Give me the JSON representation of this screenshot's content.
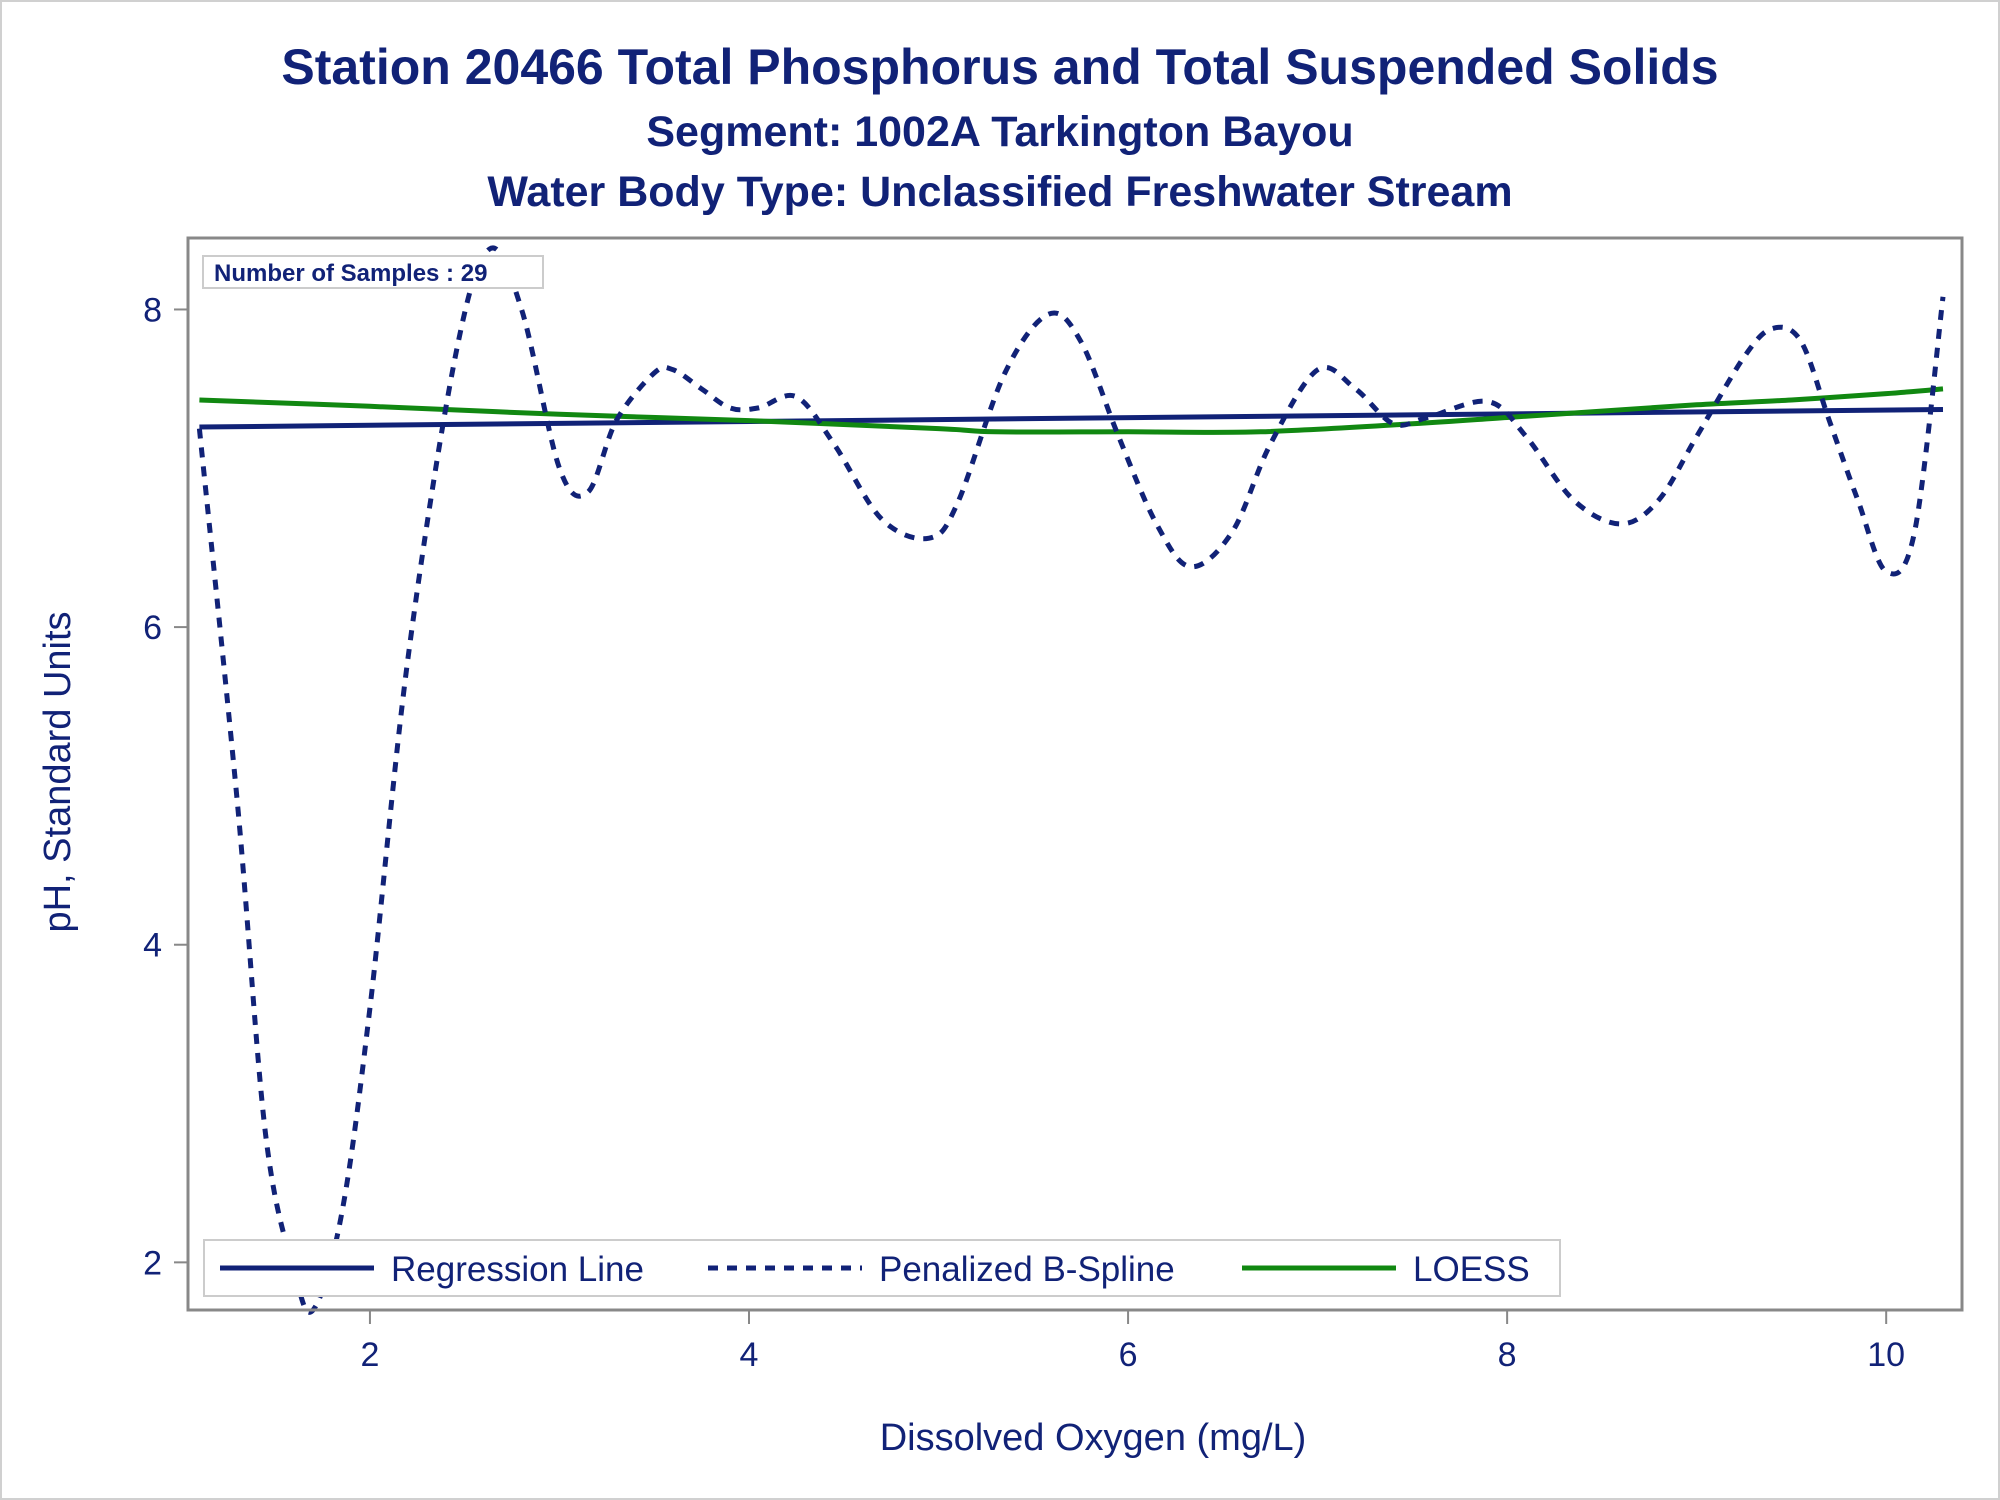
{
  "chart_data": {
    "type": "line",
    "title": "Station 20466  Total Phosphorus and Total Suspended Solids",
    "subtitle": "Segment: 1002A  Tarkington Bayou",
    "subtitle2": "Water Body Type: Unclassified Freshwater Stream",
    "xlabel": "Dissolved Oxygen (mg/L)",
    "ylabel": "pH, Standard Units",
    "xlim": [
      1.04,
      10.4
    ],
    "ylim": [
      1.7,
      8.45
    ],
    "xticks": [
      2,
      4,
      6,
      8,
      10
    ],
    "yticks": [
      2,
      4,
      6,
      8
    ],
    "grid": false,
    "legend_position": "bottom-left",
    "inset_label": "Number of Samples : 29",
    "colors": {
      "regression": "#112277",
      "spline": "#112277",
      "loess": "#118811",
      "text": "#112277",
      "axis": "#888888"
    },
    "series": [
      {
        "name": "Regression Line",
        "style": "solid",
        "x": [
          1.1,
          10.3
        ],
        "y": [
          7.26,
          7.37
        ]
      },
      {
        "name": "Penalized B-Spline",
        "style": "dashed",
        "x": [
          1.1,
          1.3,
          1.45,
          1.6,
          1.7,
          1.85,
          2.0,
          2.2,
          2.45,
          2.63,
          2.8,
          3.0,
          3.15,
          3.3,
          3.5,
          3.6,
          3.75,
          3.9,
          4.05,
          4.25,
          4.45,
          4.7,
          4.95,
          5.1,
          5.35,
          5.58,
          5.75,
          5.95,
          6.15,
          6.33,
          6.55,
          6.75,
          7.0,
          7.2,
          7.4,
          7.58,
          7.9,
          8.1,
          8.35,
          8.6,
          8.8,
          9.0,
          9.25,
          9.4,
          9.55,
          9.7,
          9.85,
          10.0,
          10.15,
          10.3
        ],
        "y": [
          7.25,
          4.9,
          2.8,
          1.95,
          1.7,
          2.3,
          3.6,
          5.8,
          7.7,
          8.38,
          8.0,
          7.0,
          6.85,
          7.3,
          7.6,
          7.62,
          7.5,
          7.38,
          7.38,
          7.45,
          7.15,
          6.68,
          6.56,
          6.78,
          7.6,
          7.97,
          7.8,
          7.2,
          6.65,
          6.38,
          6.6,
          7.15,
          7.62,
          7.5,
          7.28,
          7.32,
          7.42,
          7.2,
          6.8,
          6.65,
          6.8,
          7.2,
          7.7,
          7.88,
          7.8,
          7.3,
          6.8,
          6.35,
          6.6,
          8.08
        ]
      },
      {
        "name": "LOESS",
        "style": "solid",
        "x": [
          1.1,
          2.0,
          3.0,
          4.0,
          5.0,
          5.3,
          6.0,
          6.7,
          7.5,
          8.0,
          8.5,
          9.0,
          9.5,
          10.0,
          10.3
        ],
        "y": [
          7.43,
          7.39,
          7.34,
          7.3,
          7.25,
          7.23,
          7.23,
          7.23,
          7.28,
          7.32,
          7.36,
          7.4,
          7.43,
          7.47,
          7.5
        ]
      }
    ]
  }
}
